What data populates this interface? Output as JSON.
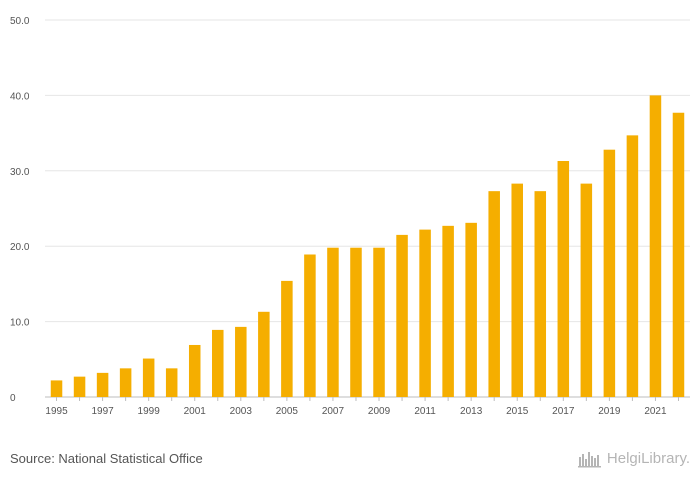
{
  "chart_data": {
    "type": "bar",
    "categories": [
      "1995",
      "1996",
      "1997",
      "1998",
      "1999",
      "2000",
      "2001",
      "2002",
      "2003",
      "2004",
      "2005",
      "2006",
      "2007",
      "2008",
      "2009",
      "2010",
      "2011",
      "2012",
      "2013",
      "2014",
      "2015",
      "2016",
      "2017",
      "2018",
      "2019",
      "2020",
      "2021",
      "2022"
    ],
    "values": [
      2.2,
      2.7,
      3.2,
      3.8,
      5.1,
      3.8,
      6.9,
      8.9,
      9.3,
      11.3,
      15.4,
      18.9,
      19.8,
      19.8,
      19.8,
      21.5,
      22.2,
      22.7,
      23.1,
      27.3,
      28.3,
      27.3,
      31.3,
      28.3,
      32.8,
      34.7,
      40.0,
      37.7
    ],
    "x_tick_labels": [
      "1995",
      "1997",
      "1999",
      "2001",
      "2003",
      "2005",
      "2007",
      "2009",
      "2011",
      "2013",
      "2015",
      "2017",
      "2019",
      "2021"
    ],
    "y_ticks": [
      0,
      10,
      20,
      30,
      40,
      50
    ],
    "y_tick_labels": [
      "0",
      "10.0",
      "20.0",
      "30.0",
      "40.0",
      "50.0"
    ],
    "ylim": [
      0,
      50
    ],
    "grid": true,
    "bar_color": "#f5ae00",
    "grid_color": "#e6e6e6"
  },
  "footer": {
    "source": "Source: National Statistical Office",
    "logo_text": "HelgiLibrary."
  },
  "icons": {
    "logo": "helgi-library-logo-icon"
  }
}
